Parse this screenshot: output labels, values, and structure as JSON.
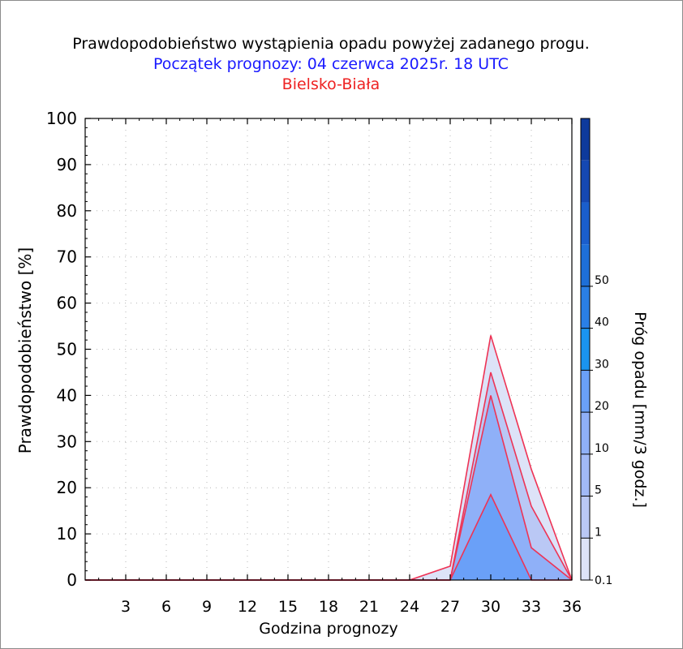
{
  "chart_data": {
    "type": "area",
    "title": "Prawdopodobieństwo wystąpienia opadu powyżej zadanego progu.",
    "subtitle": "Początek prognozy: 04 czerwca 2025r. 18 UTC",
    "location": "Bielsko-Biała",
    "xlabel": "Godzina prognozy",
    "ylabel": "Prawdopodobieństwo [%]",
    "colorbar_label": "Próg opadu [mm/3 godz.]",
    "xlim": [
      0,
      36
    ],
    "ylim": [
      0,
      100
    ],
    "x_ticks": [
      3,
      6,
      9,
      12,
      15,
      18,
      21,
      24,
      27,
      30,
      33,
      36
    ],
    "y_ticks": [
      0,
      10,
      20,
      30,
      40,
      50,
      60,
      70,
      80,
      90,
      100
    ],
    "grid": true,
    "x": [
      0,
      3,
      6,
      9,
      12,
      15,
      18,
      21,
      24,
      27,
      30,
      33,
      36
    ],
    "series": [
      {
        "threshold": 0.1,
        "color": "#dde3f8",
        "values": [
          0,
          0,
          0,
          0,
          0,
          0,
          0,
          0,
          0,
          3,
          53,
          24,
          0
        ]
      },
      {
        "threshold": 1,
        "color": "#bac8f5",
        "values": [
          0,
          0,
          0,
          0,
          0,
          0,
          0,
          0,
          0,
          0,
          45,
          16,
          0
        ]
      },
      {
        "threshold": 5,
        "color": "#8fb0f8",
        "values": [
          0,
          0,
          0,
          0,
          0,
          0,
          0,
          0,
          0,
          0,
          40,
          7,
          0
        ]
      },
      {
        "threshold": 10,
        "color": "#6aa0f8",
        "values": [
          0,
          0,
          0,
          0,
          0,
          0,
          0,
          0,
          0,
          0,
          18.5,
          0,
          0
        ]
      }
    ],
    "colorbar": {
      "labels": [
        "0.1",
        "1",
        "5",
        "10",
        "20",
        "30",
        "40",
        "50"
      ],
      "colors": [
        "#dde3f8",
        "#bac8f5",
        "#a1b9f7",
        "#8fb0f8",
        "#6aa0f8",
        "#1a94f0",
        "#2a7fe6",
        "#1e6fd8",
        "#1a5ecc",
        "#1548b2",
        "#0e3a9c"
      ]
    },
    "line_color": "#ee3355"
  }
}
